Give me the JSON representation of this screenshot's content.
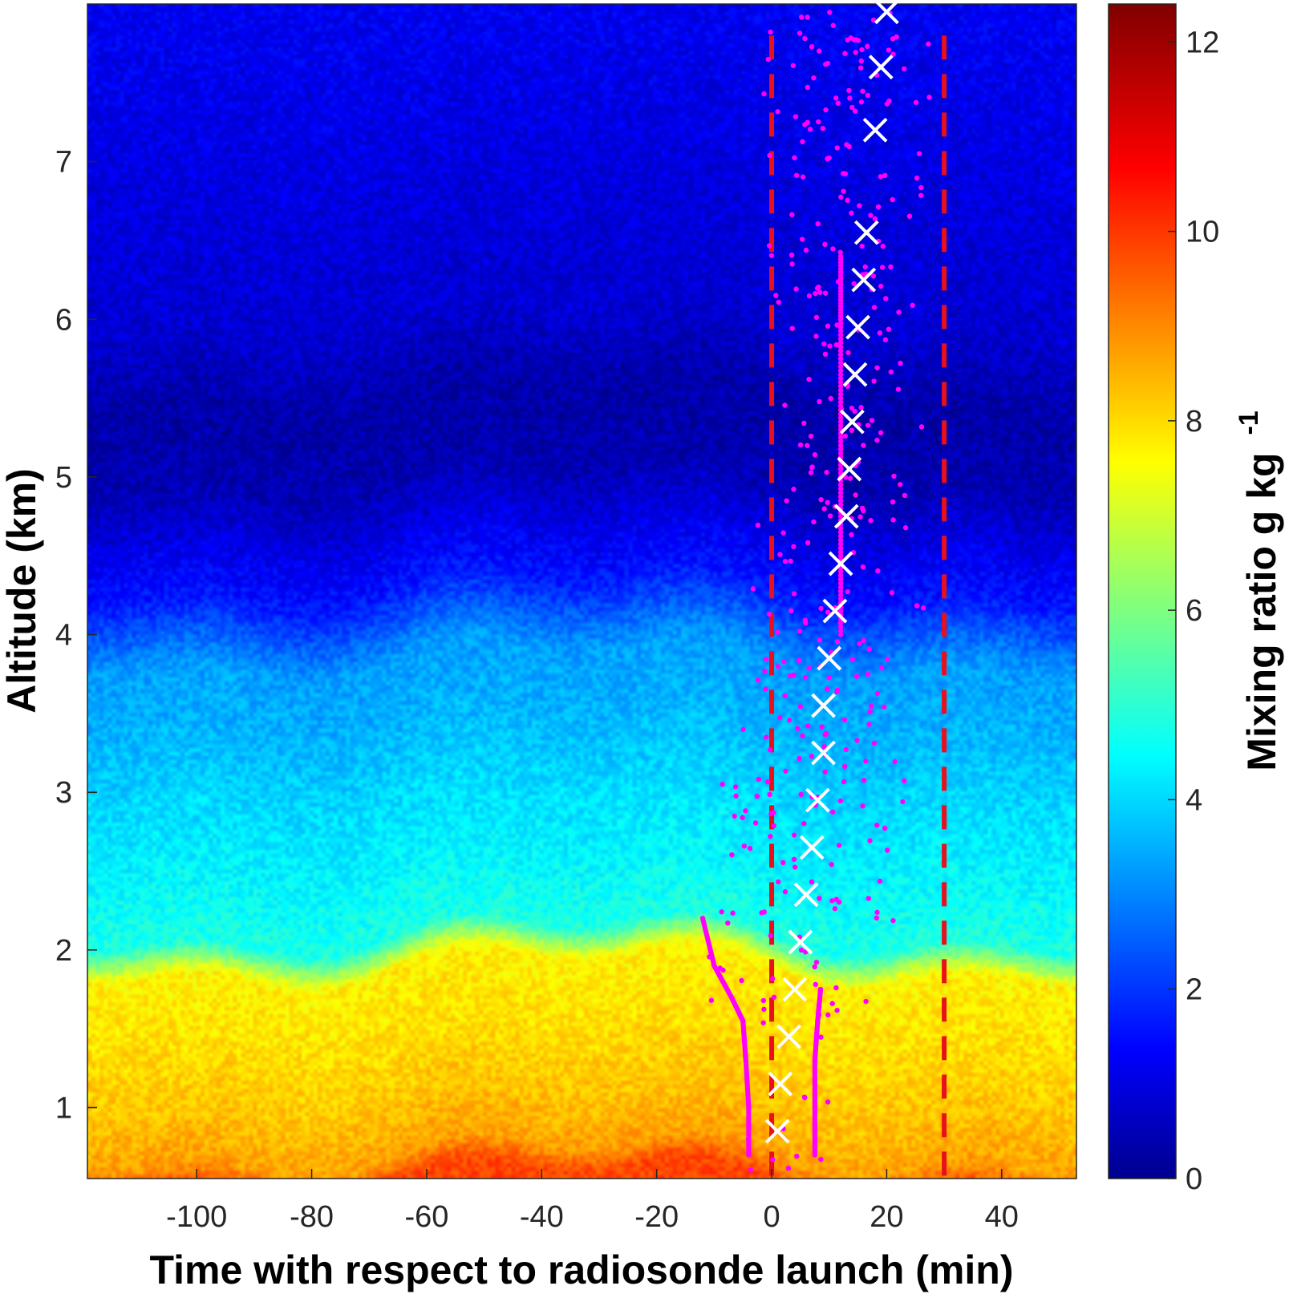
{
  "chart_data": {
    "type": "heatmap",
    "title": "",
    "xlabel": "Time with respect to radiosonde launch (min)",
    "ylabel": "Altitude (km)",
    "xlim": [
      -119,
      53
    ],
    "ylim": [
      0.55,
      8.0
    ],
    "x_ticks": [
      -100,
      -80,
      -60,
      -40,
      -20,
      0,
      20,
      40
    ],
    "y_ticks": [
      1,
      2,
      3,
      4,
      5,
      6,
      7
    ],
    "colorbar": {
      "label": "Mixing ratio g kg",
      "label_superscript": "-1",
      "colormap": "jet",
      "range": [
        0,
        12.4
      ],
      "ticks": [
        0,
        2,
        4,
        6,
        8,
        10,
        12
      ]
    },
    "mixing_ratio_profile": {
      "altitude_km": [
        0.55,
        0.7,
        1.0,
        1.5,
        1.9,
        2.1,
        2.5,
        3.0,
        3.5,
        3.85,
        4.3,
        5.0,
        5.5,
        6.0,
        7.0,
        8.0
      ],
      "mixing_ratio_g_per_kg": [
        10.0,
        8.9,
        8.5,
        8.1,
        7.9,
        5.0,
        4.6,
        4.2,
        3.7,
        3.5,
        1.8,
        0.6,
        0.5,
        1.0,
        1.2,
        1.4
      ]
    },
    "reference_lines": [
      {
        "x": 0,
        "color": "#e8101a",
        "style": "dashed"
      },
      {
        "x": 30,
        "color": "#e8101a",
        "style": "dashed"
      }
    ],
    "radiosonde_markers": {
      "marker": "x",
      "color": "#ffffff",
      "x": [
        1,
        1.5,
        3,
        4,
        5,
        6,
        7,
        8,
        9,
        9,
        10,
        11,
        12,
        13,
        13.5,
        14,
        14.5,
        15,
        16,
        16.5,
        18,
        19,
        20
      ],
      "y": [
        0.85,
        1.15,
        1.45,
        1.75,
        2.05,
        2.35,
        2.65,
        2.95,
        3.25,
        3.55,
        3.85,
        4.15,
        4.45,
        4.75,
        5.05,
        5.35,
        5.65,
        5.95,
        6.25,
        6.55,
        7.2,
        7.6,
        7.95
      ]
    },
    "magenta_traces": {
      "color": "#ff00ff",
      "description_series": [
        {
          "x": [
            -4,
            -4,
            -4.5,
            -5,
            -7,
            -10,
            -12
          ],
          "y": [
            0.7,
            1.0,
            1.3,
            1.55,
            1.7,
            1.9,
            2.2
          ]
        },
        {
          "x": [
            7.5,
            7.5,
            7.5,
            8,
            8.5
          ],
          "y": [
            0.7,
            1.0,
            1.3,
            1.55,
            1.75
          ]
        },
        {
          "x": [
            12,
            12,
            12,
            12,
            12,
            12
          ],
          "y": [
            4.0,
            4.5,
            5.0,
            5.5,
            6.0,
            6.4
          ]
        }
      ]
    }
  }
}
